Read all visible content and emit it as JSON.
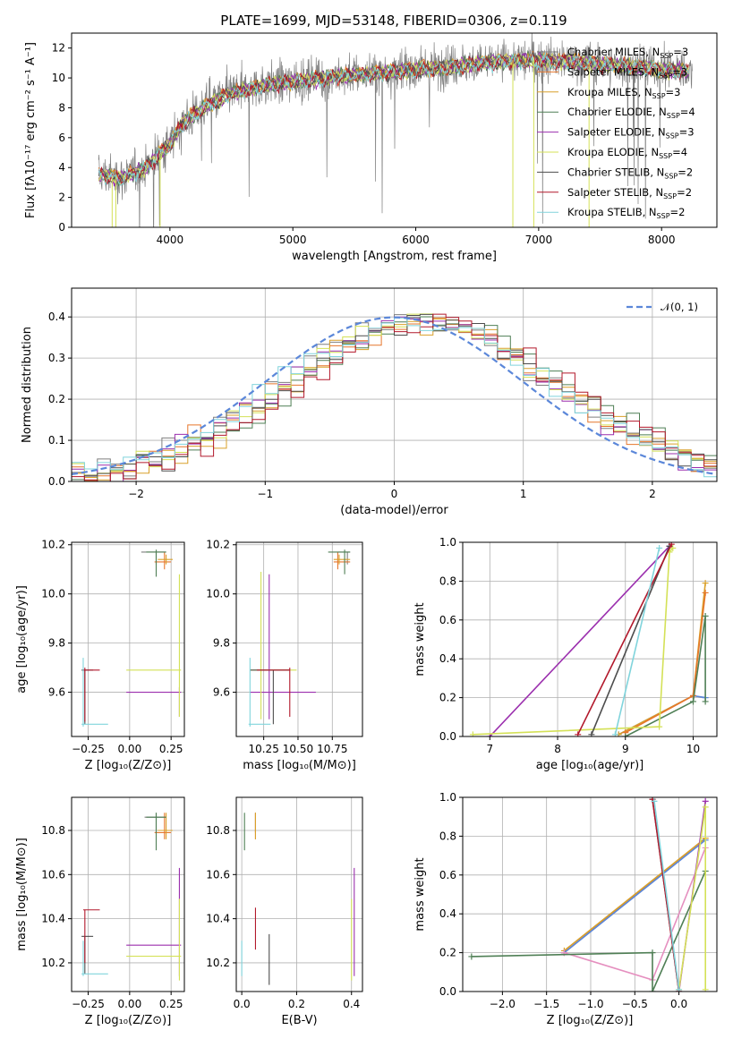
{
  "figure_title": "PLATE=1699, MJD=53148, FIBERID=0306, z=0.119",
  "colors": {
    "cM": "#7f7f7f",
    "sM": "#e6762b",
    "kM": "#d9a02a",
    "cE": "#4f7f55",
    "sE": "#9b2fae",
    "kE": "#d4e157",
    "cS": "#4d4d4d",
    "sS": "#b2182b",
    "kS": "#80d4dc",
    "normal": "#5b87d9"
  },
  "chart_data": [
    {
      "id": "spectrum",
      "type": "line",
      "xlabel": "wavelength [Angstrom, rest frame]",
      "ylabel": "Flux [fλ10⁻¹⁷ erg cm⁻² s⁻¹ A⁻¹]",
      "xlim": [
        3200,
        8450
      ],
      "ylim": [
        0,
        13
      ],
      "xticks": [
        4000,
        5000,
        6000,
        7000,
        8000
      ],
      "yticks": [
        0,
        2,
        4,
        6,
        8,
        10,
        12
      ],
      "xtick_labels": [
        "4000",
        "5000",
        "6000",
        "7000",
        "8000"
      ],
      "ytick_labels": [
        "0",
        "2",
        "4",
        "6",
        "8",
        "10",
        "12"
      ],
      "legend": "top-right",
      "grid": false,
      "continuum": {
        "x": [
          3400,
          3600,
          3800,
          4000,
          4100,
          4300,
          4500,
          4800,
          5000,
          5300,
          5600,
          6000,
          6300,
          6500,
          6800,
          7000,
          7300,
          7600,
          7800,
          8000,
          8200
        ],
        "y": [
          3.6,
          3.3,
          4.0,
          5.6,
          7.0,
          8.2,
          9.0,
          9.6,
          9.8,
          10.1,
          10.3,
          10.6,
          10.8,
          11.0,
          11.2,
          11.2,
          11.1,
          10.9,
          10.8,
          10.6,
          10.5
        ]
      },
      "data_series": {
        "x_min": 3420,
        "x_max": 8250,
        "label": "Chabrier MILES, N_SSP=3"
      },
      "series": [
        {
          "key": "cM",
          "name": "Chabrier MILES, N",
          "sub": "SSP",
          "suffix": "=3"
        },
        {
          "key": "sM",
          "name": "Salpeter MILES, N",
          "sub": "SSP",
          "suffix": "=3"
        },
        {
          "key": "kM",
          "name": "Kroupa MILES, N",
          "sub": "SSP",
          "suffix": "=3"
        },
        {
          "key": "cE",
          "name": "Chabrier ELODIE, N",
          "sub": "SSP",
          "suffix": "=4"
        },
        {
          "key": "sE",
          "name": "Salpeter ELODIE, N",
          "sub": "SSP",
          "suffix": "=3"
        },
        {
          "key": "kE",
          "name": "Kroupa ELODIE, N",
          "sub": "SSP",
          "suffix": "=4"
        },
        {
          "key": "cS",
          "name": "Chabrier STELIB, N",
          "sub": "SSP",
          "suffix": "=2"
        },
        {
          "key": "sS",
          "name": "Salpeter STELIB, N",
          "sub": "SSP",
          "suffix": "=2"
        },
        {
          "key": "kS",
          "name": "Kroupa STELIB, N",
          "sub": "SSP",
          "suffix": "=2"
        }
      ]
    },
    {
      "id": "residuals",
      "type": "histogram",
      "xlabel": "(data-model)/error",
      "ylabel": "Normed distribution",
      "xlim": [
        -2.5,
        2.5
      ],
      "ylim": [
        0,
        0.47
      ],
      "xticks": [
        -2,
        -1,
        0,
        1,
        2
      ],
      "yticks": [
        0,
        0.1,
        0.2,
        0.3,
        0.4
      ],
      "xtick_labels": [
        "−2",
        "−1",
        "0",
        "1",
        "2"
      ],
      "ytick_labels": [
        "0.0",
        "0.1",
        "0.2",
        "0.3",
        "0.4"
      ],
      "legend_label": "𝒩(0, 1)",
      "legend": "top-right",
      "grid": true,
      "bin_width": 0.1,
      "reference_curve": "standard normal, dashed"
    },
    {
      "id": "age_vs_Z",
      "type": "errorbar",
      "xlabel": "Z [log₁₀(Z/Z⊙)]",
      "ylabel": "age  [log₁₀(age/yr)]",
      "xlim": [
        -0.35,
        0.33
      ],
      "ylim": [
        9.42,
        10.21
      ],
      "xticks": [
        -0.25,
        0,
        0.25
      ],
      "yticks": [
        9.6,
        9.8,
        10.0,
        10.2
      ],
      "xtick_labels": [
        "−0.25",
        "0.00",
        "0.25"
      ],
      "ytick_labels": [
        "9.6",
        "9.8",
        "10.0",
        "10.2"
      ],
      "grid": true,
      "points": [
        {
          "c": "cM",
          "x": 0.16,
          "y": 10.17,
          "xl": 0.07,
          "xh": 0.22,
          "yl": 10.12,
          "yh": 10.17
        },
        {
          "c": "sM",
          "x": 0.21,
          "y": 10.13,
          "xl": 0.15,
          "xh": 0.25,
          "yl": 10.1,
          "yh": 10.17
        },
        {
          "c": "kM",
          "x": 0.22,
          "y": 10.14,
          "xl": 0.17,
          "xh": 0.26,
          "yl": 10.12,
          "yh": 10.16
        },
        {
          "c": "cE",
          "x": 0.16,
          "y": 10.17,
          "xl": 0.1,
          "xh": 0.22,
          "yl": 10.07,
          "yh": 10.18
        },
        {
          "c": "sE",
          "x": 0.3,
          "y": 9.6,
          "xl": -0.02,
          "xh": 0.31,
          "yl": 9.5,
          "yh": 9.62
        },
        {
          "c": "kE",
          "x": 0.3,
          "y": 9.69,
          "xl": -0.02,
          "xh": 0.31,
          "yl": 9.5,
          "yh": 10.08
        },
        {
          "c": "cS",
          "x": -0.27,
          "y": 9.69,
          "xl": -0.29,
          "xh": -0.22,
          "yl": 9.47,
          "yh": 9.69
        },
        {
          "c": "sS",
          "x": -0.27,
          "y": 9.69,
          "xl": -0.28,
          "xh": -0.18,
          "yl": 9.48,
          "yh": 9.7
        },
        {
          "c": "kS",
          "x": -0.28,
          "y": 9.47,
          "xl": -0.29,
          "xh": -0.13,
          "yl": 9.46,
          "yh": 9.74
        }
      ]
    },
    {
      "id": "age_vs_mass",
      "type": "errorbar",
      "xlabel": "mass [log₁₀(M/M⊙)]",
      "ylabel": "",
      "xlim": [
        10.05,
        10.97
      ],
      "ylim": [
        9.42,
        10.21
      ],
      "xticks": [
        10.25,
        10.5,
        10.75
      ],
      "yticks": [
        9.6,
        9.8,
        10.0,
        10.2
      ],
      "xtick_labels": [
        "10.25",
        "10.50",
        "10.75"
      ],
      "ytick_labels": [
        "9.6",
        "9.8",
        "10.0",
        "10.2"
      ],
      "grid": true,
      "points": [
        {
          "c": "cM",
          "x": 10.86,
          "y": 10.17,
          "xl": 10.79,
          "xh": 10.88,
          "yl": 10.12,
          "yh": 10.17
        },
        {
          "c": "sM",
          "x": 10.79,
          "y": 10.13,
          "xl": 10.76,
          "xh": 10.88,
          "yl": 10.1,
          "yh": 10.17
        },
        {
          "c": "kM",
          "x": 10.8,
          "y": 10.14,
          "xl": 10.76,
          "xh": 10.88,
          "yl": 10.12,
          "yh": 10.16
        },
        {
          "c": "cE",
          "x": 10.84,
          "y": 10.17,
          "xl": 10.72,
          "xh": 10.88,
          "yl": 10.08,
          "yh": 10.18
        },
        {
          "c": "sE",
          "x": 10.29,
          "y": 9.6,
          "xl": 10.15,
          "xh": 10.63,
          "yl": 9.49,
          "yh": 10.08
        },
        {
          "c": "kE",
          "x": 10.23,
          "y": 9.69,
          "xl": 10.15,
          "xh": 10.49,
          "yl": 9.49,
          "yh": 10.09
        },
        {
          "c": "cS",
          "x": 10.32,
          "y": 9.69,
          "xl": 10.15,
          "xh": 10.44,
          "yl": 9.47,
          "yh": 9.69
        },
        {
          "c": "sS",
          "x": 10.44,
          "y": 9.69,
          "xl": 10.2,
          "xh": 10.44,
          "yl": 9.5,
          "yh": 9.7
        },
        {
          "c": "kS",
          "x": 10.15,
          "y": 9.47,
          "xl": 10.14,
          "xh": 10.3,
          "yl": 9.46,
          "yh": 9.74
        }
      ]
    },
    {
      "id": "weight_vs_age",
      "type": "line",
      "xlabel": "age  [log₁₀(age/yr)]",
      "ylabel": "mass weight",
      "xlim": [
        6.6,
        10.35
      ],
      "ylim": [
        0,
        1
      ],
      "xticks": [
        7,
        8,
        9,
        10
      ],
      "yticks": [
        0,
        0.2,
        0.4,
        0.6,
        0.8,
        1.0
      ],
      "xtick_labels": [
        "7",
        "8",
        "9",
        "10"
      ],
      "ytick_labels": [
        "0.0",
        "0.2",
        "0.4",
        "0.6",
        "0.8",
        "1.0"
      ],
      "grid": true,
      "lines": [
        {
          "c": "normal",
          "x": [
            8.9,
            10.0,
            10.18
          ],
          "y": [
            0.01,
            0.21,
            0.2
          ]
        },
        {
          "c": "kM",
          "x": [
            8.9,
            10.0,
            10.18
          ],
          "y": [
            0.01,
            0.21,
            0.79
          ]
        },
        {
          "c": "sM",
          "x": [
            9.0,
            10.0,
            10.18
          ],
          "y": [
            0.02,
            0.21,
            0.74
          ]
        },
        {
          "c": "cE",
          "x": [
            9.0,
            10.0,
            10.18,
            10.18
          ],
          "y": [
            0.0,
            0.18,
            0.62,
            0.18
          ]
        },
        {
          "c": "sE",
          "x": [
            7.0,
            9.65
          ],
          "y": [
            0.0,
            0.98
          ]
        },
        {
          "c": "kE",
          "x": [
            6.75,
            9.5,
            9.65,
            9.7
          ],
          "y": [
            0.01,
            0.05,
            0.95,
            0.97
          ]
        },
        {
          "c": "cS",
          "x": [
            8.5,
            9.65
          ],
          "y": [
            0.01,
            0.98
          ]
        },
        {
          "c": "sS",
          "x": [
            8.3,
            9.68
          ],
          "y": [
            0.01,
            0.99
          ]
        },
        {
          "c": "kS",
          "x": [
            8.85,
            9.5
          ],
          "y": [
            0.01,
            0.97
          ]
        }
      ]
    },
    {
      "id": "mass_vs_Z",
      "type": "errorbar",
      "xlabel": "Z [log₁₀(Z/Z⊙)]",
      "ylabel": "mass [log₁₀(M/M⊙)]",
      "xlim": [
        -0.35,
        0.33
      ],
      "ylim": [
        10.07,
        10.95
      ],
      "xticks": [
        -0.25,
        0,
        0.25
      ],
      "yticks": [
        10.2,
        10.4,
        10.6,
        10.8
      ],
      "xtick_labels": [
        "−0.25",
        "0.00",
        "0.25"
      ],
      "ytick_labels": [
        "10.2",
        "10.4",
        "10.6",
        "10.8"
      ],
      "grid": true,
      "points": [
        {
          "c": "cM",
          "x": 0.16,
          "y": 10.86,
          "xl": 0.09,
          "xh": 0.22,
          "yl": 10.79,
          "yh": 10.88
        },
        {
          "c": "sM",
          "x": 0.21,
          "y": 10.79,
          "xl": 0.15,
          "xh": 0.25,
          "yl": 10.76,
          "yh": 10.88
        },
        {
          "c": "kM",
          "x": 0.22,
          "y": 10.8,
          "xl": 0.17,
          "xh": 0.26,
          "yl": 10.76,
          "yh": 10.88
        },
        {
          "c": "cE",
          "x": 0.16,
          "y": 10.86,
          "xl": 0.1,
          "xh": 0.22,
          "yl": 10.71,
          "yh": 10.88
        },
        {
          "c": "sE",
          "x": 0.3,
          "y": 10.28,
          "xl": -0.02,
          "xh": 0.31,
          "yl": 10.14,
          "yh": 10.63
        },
        {
          "c": "kE",
          "x": 0.3,
          "y": 10.23,
          "xl": -0.02,
          "xh": 0.31,
          "yl": 10.12,
          "yh": 10.49
        },
        {
          "c": "cS",
          "x": -0.27,
          "y": 10.32,
          "xl": -0.29,
          "xh": -0.22,
          "yl": 10.15,
          "yh": 10.32
        },
        {
          "c": "sS",
          "x": -0.27,
          "y": 10.44,
          "xl": -0.28,
          "xh": -0.18,
          "yl": 10.2,
          "yh": 10.44
        },
        {
          "c": "kS",
          "x": -0.28,
          "y": 10.15,
          "xl": -0.29,
          "xh": -0.13,
          "yl": 10.14,
          "yh": 10.3
        }
      ]
    },
    {
      "id": "mass_vs_EBV",
      "type": "errorbar",
      "xlabel": "E(B-V)",
      "ylabel": "",
      "xlim": [
        -0.02,
        0.44
      ],
      "ylim": [
        10.07,
        10.95
      ],
      "xticks": [
        0,
        0.2,
        0.4
      ],
      "yticks": [
        10.2,
        10.4,
        10.6,
        10.8
      ],
      "xtick_labels": [
        "0.0",
        "0.2",
        "0.4"
      ],
      "ytick_labels": [
        "10.2",
        "10.4",
        "10.6",
        "10.8"
      ],
      "grid": true,
      "points": [
        {
          "c": "cM",
          "x": 0.05,
          "y": 10.86,
          "xl": 0.05,
          "xh": 0.05,
          "yl": 10.79,
          "yh": 10.88
        },
        {
          "c": "sM",
          "x": 0.05,
          "y": 10.79,
          "xl": 0.05,
          "xh": 0.05,
          "yl": 10.76,
          "yh": 10.88
        },
        {
          "c": "kM",
          "x": 0.05,
          "y": 10.8,
          "xl": 0.05,
          "xh": 0.05,
          "yl": 10.76,
          "yh": 10.88
        },
        {
          "c": "cE",
          "x": 0.01,
          "y": 10.86,
          "xl": 0.01,
          "xh": 0.01,
          "yl": 10.71,
          "yh": 10.88
        },
        {
          "c": "sE",
          "x": 0.41,
          "y": 10.28,
          "xl": 0.41,
          "xh": 0.41,
          "yl": 10.14,
          "yh": 10.63
        },
        {
          "c": "kE",
          "x": 0.4,
          "y": 10.23,
          "xl": 0.4,
          "xh": 0.4,
          "yl": 10.12,
          "yh": 10.49
        },
        {
          "c": "cS",
          "x": 0.1,
          "y": 10.32,
          "xl": 0.1,
          "xh": 0.1,
          "yl": 10.1,
          "yh": 10.33
        },
        {
          "c": "sS",
          "x": 0.05,
          "y": 10.44,
          "xl": 0.05,
          "xh": 0.05,
          "yl": 10.26,
          "yh": 10.45
        },
        {
          "c": "kS",
          "x": 0.0,
          "y": 10.15,
          "xl": 0.0,
          "xh": 0.0,
          "yl": 10.14,
          "yh": 10.3
        }
      ]
    },
    {
      "id": "weight_vs_Z",
      "type": "line",
      "xlabel": "Z [log₁₀(Z/Z⊙)]",
      "ylabel": "mass weight",
      "xlim": [
        -2.45,
        0.43
      ],
      "ylim": [
        0,
        1
      ],
      "xticks": [
        -2,
        -1.5,
        -1,
        -0.5,
        0
      ],
      "yticks": [
        0,
        0.2,
        0.4,
        0.6,
        0.8,
        1.0
      ],
      "xtick_labels": [
        "−2.0",
        "−1.5",
        "−1.0",
        "−0.5",
        "0.0"
      ],
      "ytick_labels": [
        "0.0",
        "0.2",
        "0.4",
        "0.6",
        "0.8",
        "1.0"
      ],
      "grid": true,
      "lines": [
        {
          "c": "sM",
          "x": [
            -1.3,
            0.3
          ],
          "y": [
            0.2,
            0.79
          ]
        },
        {
          "c": "kM",
          "x": [
            -1.3,
            0.3
          ],
          "y": [
            0.21,
            0.79
          ]
        },
        {
          "c": "normal",
          "x": [
            -1.3,
            0.3
          ],
          "y": [
            0.2,
            0.78
          ]
        },
        {
          "c": "pink",
          "x": [
            -1.3,
            -0.3,
            0.3
          ],
          "y": [
            0.2,
            0.06,
            0.74
          ]
        },
        {
          "c": "cE",
          "x": [
            -2.35,
            -0.3,
            -0.3,
            0.3
          ],
          "y": [
            0.18,
            0.2,
            0.0,
            0.62
          ]
        },
        {
          "c": "sE",
          "x": [
            0.0,
            0.3
          ],
          "y": [
            0.0,
            0.98
          ]
        },
        {
          "c": "kE",
          "x": [
            0.0,
            0.3,
            0.3
          ],
          "y": [
            0.01,
            0.95,
            0.01
          ]
        },
        {
          "c": "cS",
          "x": [
            -0.3,
            0.0
          ],
          "y": [
            0.99,
            0.0
          ]
        },
        {
          "c": "sS",
          "x": [
            -0.3,
            0.0
          ],
          "y": [
            0.99,
            0.0
          ]
        },
        {
          "c": "kS",
          "x": [
            -0.28,
            0.0
          ],
          "y": [
            0.98,
            0.01
          ]
        }
      ]
    }
  ]
}
